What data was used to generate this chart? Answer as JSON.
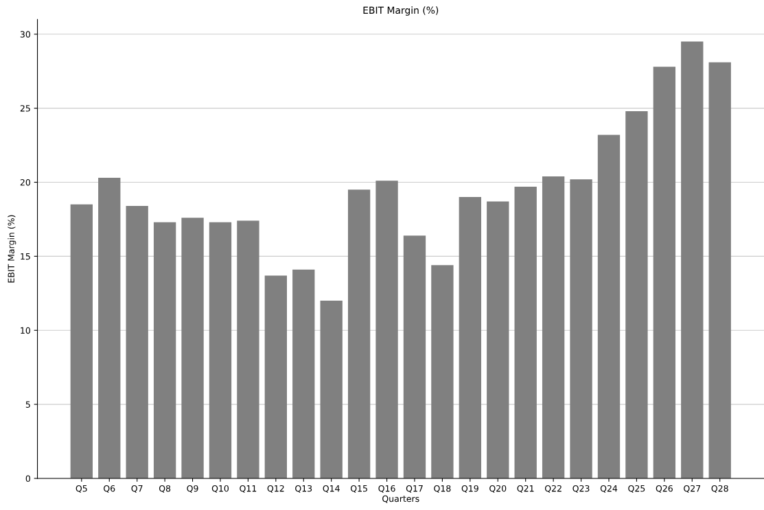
{
  "chart_data": {
    "type": "bar",
    "title": "EBIT Margin (%)",
    "xlabel": "Quarters",
    "ylabel": "EBIT Margin (%)",
    "categories": [
      "Q5",
      "Q6",
      "Q7",
      "Q8",
      "Q9",
      "Q10",
      "Q11",
      "Q12",
      "Q13",
      "Q14",
      "Q15",
      "Q16",
      "Q17",
      "Q18",
      "Q19",
      "Q20",
      "Q21",
      "Q22",
      "Q23",
      "Q24",
      "Q25",
      "Q26",
      "Q27",
      "Q28"
    ],
    "values": [
      18.5,
      20.3,
      18.4,
      17.3,
      17.6,
      17.3,
      17.4,
      13.7,
      14.1,
      12.0,
      19.5,
      20.1,
      16.4,
      14.4,
      19.0,
      18.7,
      19.7,
      20.4,
      20.2,
      23.2,
      24.8,
      27.8,
      29.5,
      28.1
    ],
    "color": "#808080",
    "ylim": [
      0,
      31
    ],
    "yticks": [
      0,
      5,
      10,
      15,
      20,
      25,
      30
    ],
    "grid": "y"
  }
}
